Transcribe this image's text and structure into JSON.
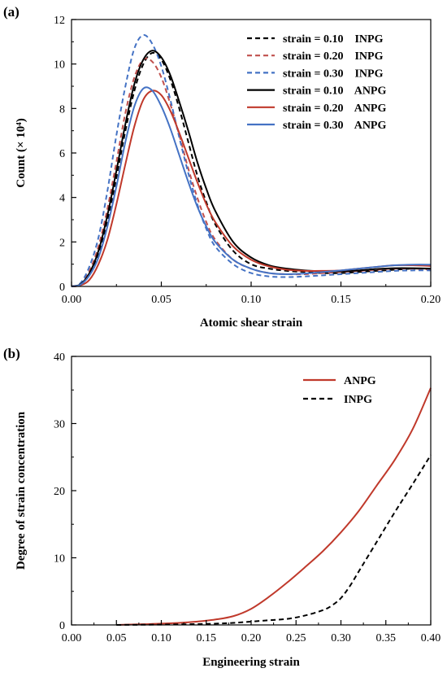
{
  "chart_data": [
    {
      "type": "line",
      "panel_label": "(a)",
      "xlabel": "Atomic shear strain",
      "ylabel": "Count (× 10⁴)",
      "xlim": [
        0,
        0.2
      ],
      "ylim": [
        0,
        12
      ],
      "xticks": [
        "0.00",
        "0.05",
        "0.10",
        "0.15",
        "0.20"
      ],
      "yticks": [
        "0",
        "2",
        "4",
        "6",
        "8",
        "10",
        "12"
      ],
      "grid": false,
      "legend_position": "top-right",
      "series": [
        {
          "name": "strain = 0.10    INPG",
          "color": "#000000",
          "dash": "dashed",
          "points": [
            [
              0,
              0
            ],
            [
              0.005,
              0.1
            ],
            [
              0.01,
              0.6
            ],
            [
              0.015,
              1.5
            ],
            [
              0.02,
              3.0
            ],
            [
              0.025,
              4.9
            ],
            [
              0.03,
              7.0
            ],
            [
              0.035,
              8.8
            ],
            [
              0.04,
              10.0
            ],
            [
              0.045,
              10.5
            ],
            [
              0.05,
              10.2
            ],
            [
              0.055,
              9.3
            ],
            [
              0.06,
              8.0
            ],
            [
              0.065,
              6.5
            ],
            [
              0.07,
              5.0
            ],
            [
              0.075,
              3.8
            ],
            [
              0.08,
              2.8
            ],
            [
              0.09,
              1.6
            ],
            [
              0.1,
              1.0
            ],
            [
              0.11,
              0.8
            ],
            [
              0.12,
              0.7
            ],
            [
              0.13,
              0.65
            ],
            [
              0.14,
              0.6
            ],
            [
              0.15,
              0.6
            ],
            [
              0.16,
              0.65
            ],
            [
              0.17,
              0.7
            ],
            [
              0.18,
              0.75
            ],
            [
              0.19,
              0.8
            ],
            [
              0.2,
              0.8
            ]
          ]
        },
        {
          "name": "strain = 0.20    INPG",
          "color": "#c0504d",
          "dash": "dashed",
          "points": [
            [
              0,
              0
            ],
            [
              0.005,
              0.1
            ],
            [
              0.01,
              0.7
            ],
            [
              0.015,
              1.8
            ],
            [
              0.02,
              3.5
            ],
            [
              0.025,
              5.6
            ],
            [
              0.03,
              7.8
            ],
            [
              0.035,
              9.4
            ],
            [
              0.04,
              10.2
            ],
            [
              0.045,
              10.1
            ],
            [
              0.05,
              9.4
            ],
            [
              0.055,
              8.2
            ],
            [
              0.06,
              6.8
            ],
            [
              0.065,
              5.3
            ],
            [
              0.07,
              4.0
            ],
            [
              0.075,
              2.9
            ],
            [
              0.08,
              2.1
            ],
            [
              0.09,
              1.2
            ],
            [
              0.1,
              0.8
            ],
            [
              0.11,
              0.6
            ],
            [
              0.12,
              0.55
            ],
            [
              0.13,
              0.55
            ],
            [
              0.14,
              0.6
            ],
            [
              0.15,
              0.65
            ],
            [
              0.16,
              0.7
            ],
            [
              0.17,
              0.75
            ],
            [
              0.18,
              0.8
            ],
            [
              0.19,
              0.8
            ],
            [
              0.2,
              0.75
            ]
          ]
        },
        {
          "name": "strain = 0.30    INPG",
          "color": "#4472c4",
          "dash": "dashed",
          "points": [
            [
              0,
              0
            ],
            [
              0.005,
              0.15
            ],
            [
              0.01,
              0.9
            ],
            [
              0.015,
              2.2
            ],
            [
              0.02,
              4.3
            ],
            [
              0.025,
              6.8
            ],
            [
              0.03,
              9.0
            ],
            [
              0.035,
              10.7
            ],
            [
              0.04,
              11.3
            ],
            [
              0.045,
              10.9
            ],
            [
              0.05,
              9.9
            ],
            [
              0.055,
              8.4
            ],
            [
              0.06,
              6.7
            ],
            [
              0.065,
              5.1
            ],
            [
              0.07,
              3.7
            ],
            [
              0.075,
              2.6
            ],
            [
              0.08,
              1.8
            ],
            [
              0.09,
              1.0
            ],
            [
              0.1,
              0.6
            ],
            [
              0.11,
              0.45
            ],
            [
              0.12,
              0.42
            ],
            [
              0.13,
              0.45
            ],
            [
              0.14,
              0.5
            ],
            [
              0.15,
              0.55
            ],
            [
              0.16,
              0.6
            ],
            [
              0.17,
              0.65
            ],
            [
              0.18,
              0.7
            ],
            [
              0.19,
              0.72
            ],
            [
              0.2,
              0.72
            ]
          ]
        },
        {
          "name": "strain = 0.10    ANPG",
          "color": "#000000",
          "dash": "solid",
          "points": [
            [
              0,
              0
            ],
            [
              0.005,
              0.1
            ],
            [
              0.01,
              0.6
            ],
            [
              0.015,
              1.6
            ],
            [
              0.02,
              3.2
            ],
            [
              0.025,
              5.2
            ],
            [
              0.03,
              7.3
            ],
            [
              0.035,
              9.1
            ],
            [
              0.04,
              10.2
            ],
            [
              0.045,
              10.6
            ],
            [
              0.05,
              10.3
            ],
            [
              0.055,
              9.5
            ],
            [
              0.06,
              8.3
            ],
            [
              0.065,
              7.0
            ],
            [
              0.07,
              5.6
            ],
            [
              0.075,
              4.4
            ],
            [
              0.08,
              3.4
            ],
            [
              0.09,
              2.0
            ],
            [
              0.1,
              1.3
            ],
            [
              0.11,
              0.95
            ],
            [
              0.12,
              0.8
            ],
            [
              0.13,
              0.72
            ],
            [
              0.14,
              0.68
            ],
            [
              0.15,
              0.68
            ],
            [
              0.16,
              0.72
            ],
            [
              0.17,
              0.78
            ],
            [
              0.18,
              0.82
            ],
            [
              0.19,
              0.82
            ],
            [
              0.2,
              0.8
            ]
          ]
        },
        {
          "name": "strain = 0.20    ANPG",
          "color": "#c0392b",
          "dash": "solid",
          "points": [
            [
              0,
              0
            ],
            [
              0.005,
              0.05
            ],
            [
              0.01,
              0.3
            ],
            [
              0.015,
              1.0
            ],
            [
              0.02,
              2.1
            ],
            [
              0.025,
              3.7
            ],
            [
              0.03,
              5.5
            ],
            [
              0.035,
              7.2
            ],
            [
              0.04,
              8.4
            ],
            [
              0.045,
              8.8
            ],
            [
              0.05,
              8.6
            ],
            [
              0.055,
              7.9
            ],
            [
              0.06,
              6.9
            ],
            [
              0.065,
              5.8
            ],
            [
              0.07,
              4.7
            ],
            [
              0.075,
              3.7
            ],
            [
              0.08,
              2.9
            ],
            [
              0.09,
              1.8
            ],
            [
              0.1,
              1.2
            ],
            [
              0.11,
              0.9
            ],
            [
              0.12,
              0.75
            ],
            [
              0.13,
              0.7
            ],
            [
              0.14,
              0.7
            ],
            [
              0.15,
              0.72
            ],
            [
              0.16,
              0.8
            ],
            [
              0.17,
              0.88
            ],
            [
              0.18,
              0.95
            ],
            [
              0.19,
              0.95
            ],
            [
              0.2,
              0.92
            ]
          ]
        },
        {
          "name": "strain = 0.30    ANPG",
          "color": "#4472c4",
          "dash": "solid",
          "points": [
            [
              0,
              0
            ],
            [
              0.005,
              0.08
            ],
            [
              0.01,
              0.5
            ],
            [
              0.015,
              1.3
            ],
            [
              0.02,
              2.7
            ],
            [
              0.025,
              4.5
            ],
            [
              0.03,
              6.5
            ],
            [
              0.035,
              8.1
            ],
            [
              0.04,
              8.9
            ],
            [
              0.045,
              8.8
            ],
            [
              0.05,
              8.1
            ],
            [
              0.055,
              7.1
            ],
            [
              0.06,
              5.9
            ],
            [
              0.065,
              4.7
            ],
            [
              0.07,
              3.6
            ],
            [
              0.075,
              2.7
            ],
            [
              0.08,
              2.0
            ],
            [
              0.09,
              1.2
            ],
            [
              0.1,
              0.8
            ],
            [
              0.11,
              0.6
            ],
            [
              0.12,
              0.55
            ],
            [
              0.13,
              0.58
            ],
            [
              0.14,
              0.65
            ],
            [
              0.15,
              0.72
            ],
            [
              0.16,
              0.8
            ],
            [
              0.17,
              0.88
            ],
            [
              0.18,
              0.95
            ],
            [
              0.19,
              0.98
            ],
            [
              0.2,
              0.98
            ]
          ]
        }
      ]
    },
    {
      "type": "line",
      "panel_label": "(b)",
      "xlabel": "Engineering strain",
      "ylabel": "Degree of strain concentration",
      "xlim": [
        0,
        0.4
      ],
      "ylim": [
        0,
        40
      ],
      "xticks": [
        "0.00",
        "0.05",
        "0.10",
        "0.15",
        "0.20",
        "0.25",
        "0.30",
        "0.35",
        "0.40"
      ],
      "yticks": [
        "0",
        "10",
        "20",
        "30",
        "40"
      ],
      "grid": false,
      "legend_position": "top-right",
      "series": [
        {
          "name": "ANPG",
          "color": "#c0392b",
          "dash": "solid",
          "points": [
            [
              0.05,
              0
            ],
            [
              0.08,
              0.1
            ],
            [
              0.1,
              0.2
            ],
            [
              0.12,
              0.3
            ],
            [
              0.14,
              0.5
            ],
            [
              0.16,
              0.8
            ],
            [
              0.18,
              1.3
            ],
            [
              0.2,
              2.4
            ],
            [
              0.22,
              4.2
            ],
            [
              0.24,
              6.3
            ],
            [
              0.26,
              8.6
            ],
            [
              0.28,
              11.0
            ],
            [
              0.3,
              13.8
            ],
            [
              0.32,
              17.0
            ],
            [
              0.34,
              20.8
            ],
            [
              0.36,
              24.6
            ],
            [
              0.38,
              29.2
            ],
            [
              0.4,
              35.3
            ]
          ]
        },
        {
          "name": "INPG",
          "color": "#000000",
          "dash": "dashed",
          "points": [
            [
              0.05,
              0
            ],
            [
              0.1,
              0.05
            ],
            [
              0.15,
              0.15
            ],
            [
              0.18,
              0.3
            ],
            [
              0.2,
              0.5
            ],
            [
              0.22,
              0.7
            ],
            [
              0.24,
              0.9
            ],
            [
              0.26,
              1.4
            ],
            [
              0.28,
              2.2
            ],
            [
              0.29,
              2.9
            ],
            [
              0.3,
              4.0
            ],
            [
              0.31,
              5.8
            ],
            [
              0.32,
              8.0
            ],
            [
              0.34,
              12.4
            ],
            [
              0.36,
              16.8
            ],
            [
              0.38,
              21.0
            ],
            [
              0.4,
              25.3
            ]
          ]
        }
      ]
    }
  ]
}
